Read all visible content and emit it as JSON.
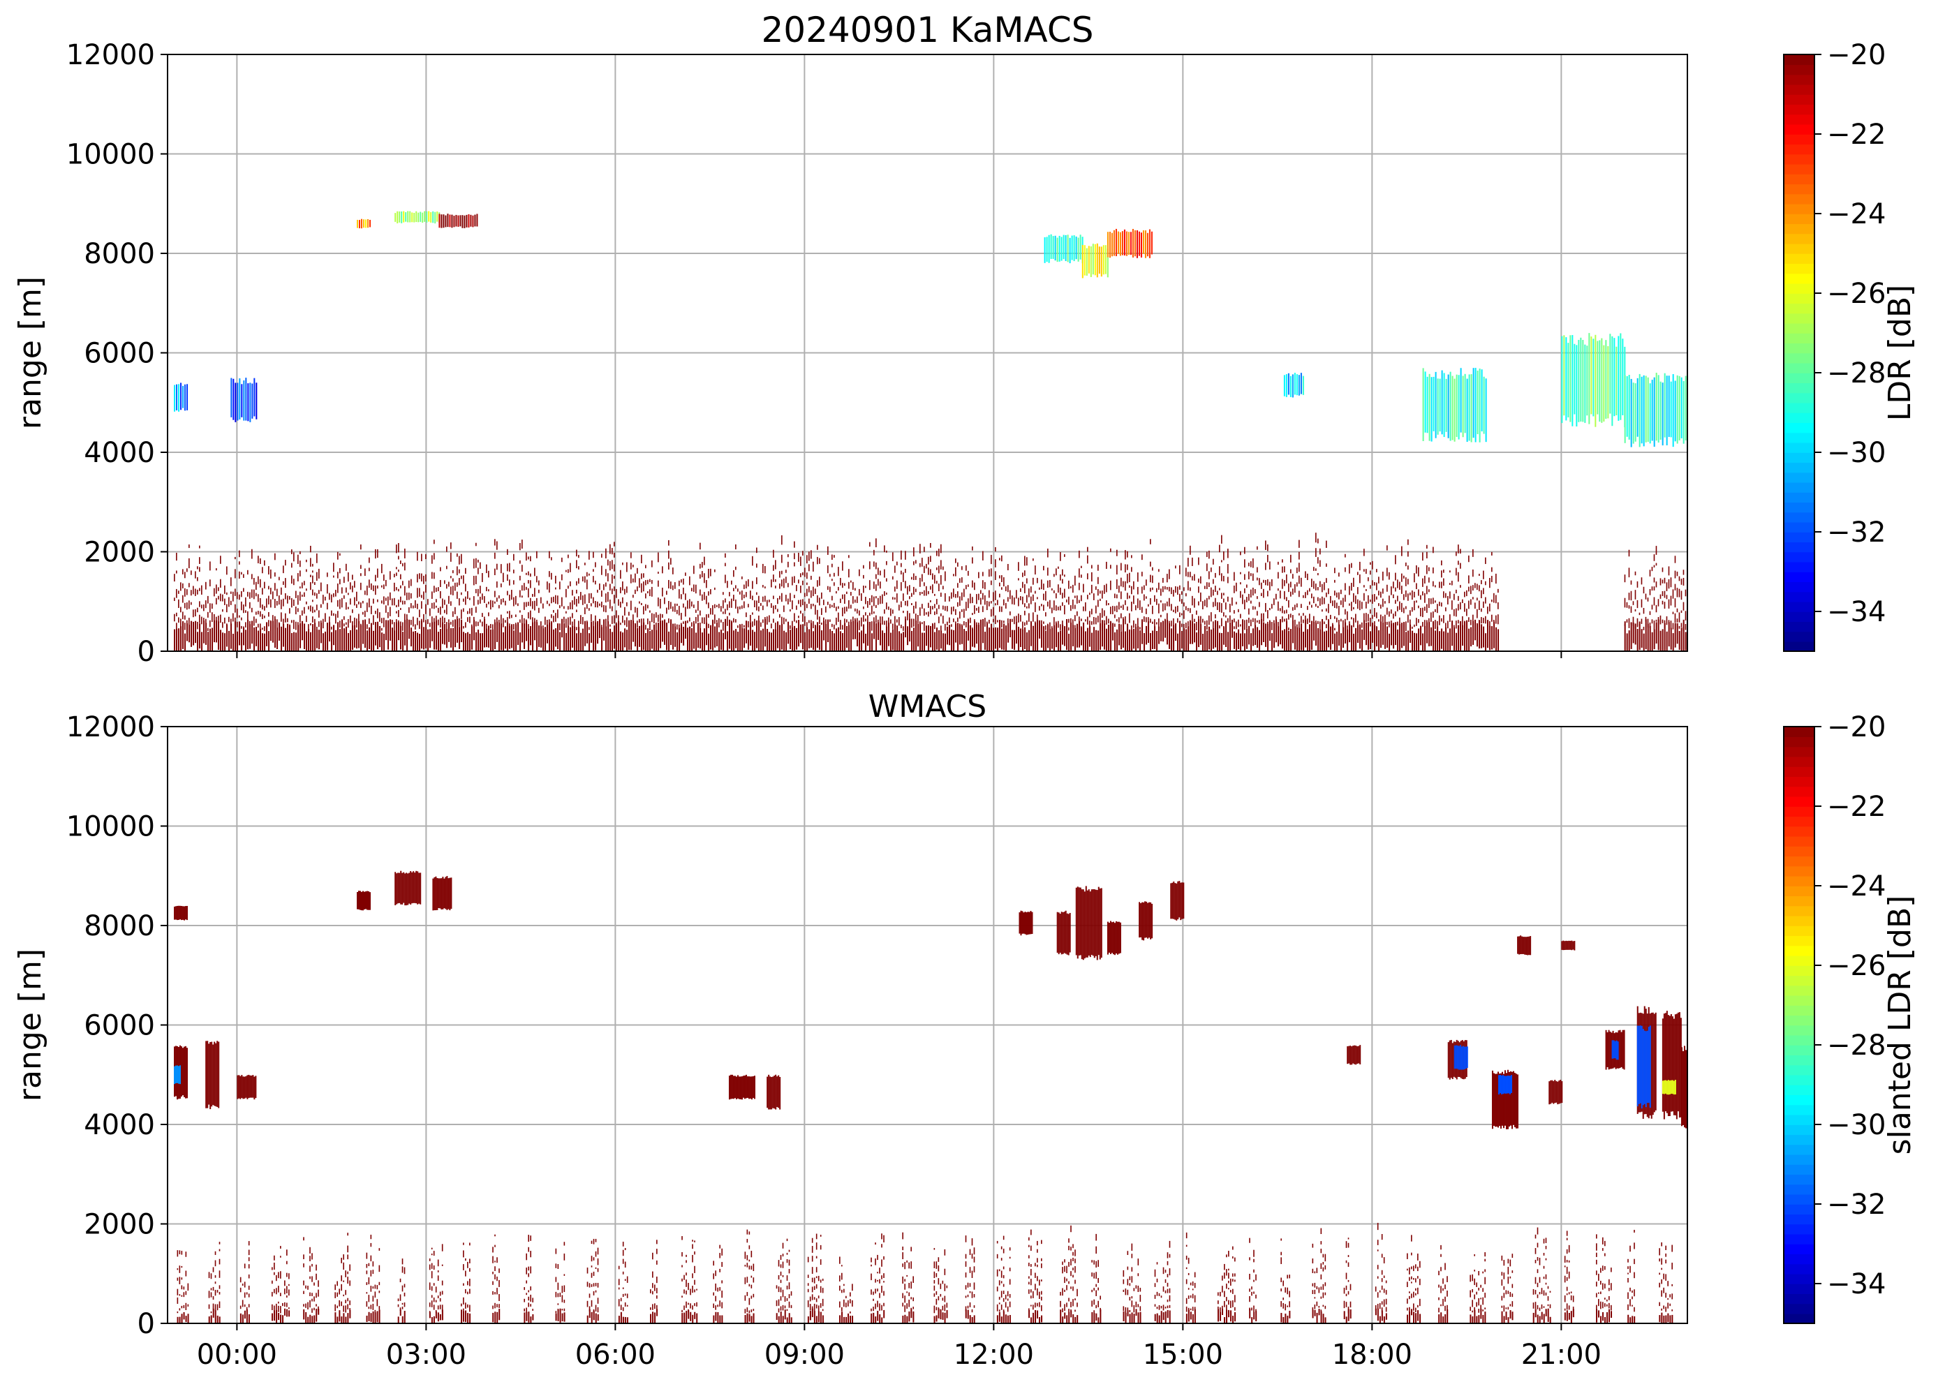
{
  "chart_data": [
    {
      "type": "heatmap",
      "title": "20240901 KaMACS",
      "ylabel": "range [m]",
      "xlabel": "",
      "ylim": [
        0,
        12000
      ],
      "xlim_hours": [
        -1.1,
        23.0
      ],
      "yticks": [
        "0",
        "2000",
        "4000",
        "6000",
        "8000",
        "10000",
        "12000"
      ],
      "yvalues": [
        0,
        2000,
        4000,
        6000,
        8000,
        10000,
        12000
      ],
      "xticks_hours": [
        0,
        3,
        6,
        9,
        12,
        15,
        18,
        21
      ],
      "xtick_labels": [],
      "grid": true,
      "colorbar": {
        "label": "LDR [dB]",
        "range": [
          -35,
          -20
        ],
        "ticks": [
          "−20",
          "−22",
          "−24",
          "−26",
          "−28",
          "−30",
          "−32",
          "−34"
        ],
        "tick_values": [
          -20,
          -22,
          -24,
          -26,
          -28,
          -30,
          -32,
          -34
        ],
        "colormap": "jet"
      },
      "regions": [
        {
          "t0": -1.0,
          "t1": 20.0,
          "r0": 0,
          "r1": 2200,
          "ldr": -20,
          "pattern": "clutter-dense"
        },
        {
          "t0": 22.0,
          "t1": 23.0,
          "r0": 0,
          "r1": 2000,
          "ldr": -20,
          "pattern": "clutter-dense"
        },
        {
          "t0": -1.0,
          "t1": -0.8,
          "r0": 4800,
          "r1": 5400,
          "ldr": -31,
          "pattern": "cloud"
        },
        {
          "t0": -0.1,
          "t1": 0.3,
          "r0": 4600,
          "r1": 5500,
          "ldr": -32,
          "pattern": "cloud"
        },
        {
          "t0": 1.9,
          "t1": 2.1,
          "r0": 8500,
          "r1": 8700,
          "ldr": -24,
          "pattern": "cloud"
        },
        {
          "t0": 2.5,
          "t1": 3.2,
          "r0": 8600,
          "r1": 8850,
          "ldr": -27,
          "pattern": "cloud"
        },
        {
          "t0": 3.2,
          "t1": 3.8,
          "r0": 8500,
          "r1": 8800,
          "ldr": -20,
          "pattern": "cloud"
        },
        {
          "t0": 12.8,
          "t1": 13.4,
          "r0": 7800,
          "r1": 8400,
          "ldr": -29,
          "pattern": "cloud"
        },
        {
          "t0": 13.4,
          "t1": 13.8,
          "r0": 7500,
          "r1": 8200,
          "ldr": -26,
          "pattern": "cloud"
        },
        {
          "t0": 13.8,
          "t1": 14.5,
          "r0": 7900,
          "r1": 8500,
          "ldr": -23,
          "pattern": "cloud"
        },
        {
          "t0": 16.6,
          "t1": 16.9,
          "r0": 5100,
          "r1": 5600,
          "ldr": -30,
          "pattern": "cloud"
        },
        {
          "t0": 18.8,
          "t1": 19.8,
          "r0": 4200,
          "r1": 5700,
          "ldr": -29,
          "pattern": "cloud"
        },
        {
          "t0": 21.0,
          "t1": 22.0,
          "r0": 4500,
          "r1": 6400,
          "ldr": -28,
          "pattern": "cloud"
        },
        {
          "t0": 22.0,
          "t1": 23.0,
          "r0": 4100,
          "r1": 5600,
          "ldr": -29,
          "pattern": "cloud"
        }
      ]
    },
    {
      "type": "heatmap",
      "title": "WMACS",
      "ylabel": "range [m]",
      "xlabel": "",
      "ylim": [
        0,
        12000
      ],
      "xlim_hours": [
        -1.1,
        23.0
      ],
      "yticks": [
        "0",
        "2000",
        "4000",
        "6000",
        "8000",
        "10000",
        "12000"
      ],
      "yvalues": [
        0,
        2000,
        4000,
        6000,
        8000,
        10000,
        12000
      ],
      "xticks_hours": [
        0,
        3,
        6,
        9,
        12,
        15,
        18,
        21
      ],
      "xtick_labels": [
        "00:00",
        "03:00",
        "06:00",
        "09:00",
        "12:00",
        "15:00",
        "18:00",
        "21:00"
      ],
      "grid": true,
      "colorbar": {
        "label": "slanted LDR [dB]",
        "range": [
          -35,
          -20
        ],
        "ticks": [
          "−20",
          "−22",
          "−24",
          "−26",
          "−28",
          "−30",
          "−32",
          "−34"
        ],
        "tick_values": [
          -20,
          -22,
          -24,
          -26,
          -28,
          -30,
          -32,
          -34
        ],
        "colormap": "jet"
      },
      "regions": [
        {
          "t0": -1.0,
          "t1": 23.0,
          "r0": 0,
          "r1": 1900,
          "ldr": -20,
          "pattern": "clutter-bursts"
        },
        {
          "t0": -1.0,
          "t1": -0.8,
          "r0": 8100,
          "r1": 8400,
          "ldr": -20,
          "pattern": "block"
        },
        {
          "t0": -1.0,
          "t1": -0.8,
          "r0": 4500,
          "r1": 5600,
          "ldr": -20,
          "pattern": "block"
        },
        {
          "t0": -0.5,
          "t1": -0.3,
          "r0": 4300,
          "r1": 5700,
          "ldr": -20,
          "pattern": "block"
        },
        {
          "t0": 0.0,
          "t1": 0.3,
          "r0": 4500,
          "r1": 5000,
          "ldr": -20,
          "pattern": "block"
        },
        {
          "t0": 1.9,
          "t1": 2.1,
          "r0": 8300,
          "r1": 8700,
          "ldr": -20,
          "pattern": "block"
        },
        {
          "t0": 2.5,
          "t1": 2.9,
          "r0": 8400,
          "r1": 9100,
          "ldr": -20,
          "pattern": "block"
        },
        {
          "t0": 3.1,
          "t1": 3.4,
          "r0": 8300,
          "r1": 9000,
          "ldr": -20,
          "pattern": "block"
        },
        {
          "t0": 7.8,
          "t1": 8.2,
          "r0": 4500,
          "r1": 5000,
          "ldr": -20,
          "pattern": "block"
        },
        {
          "t0": 8.4,
          "t1": 8.6,
          "r0": 4300,
          "r1": 5000,
          "ldr": -20,
          "pattern": "block"
        },
        {
          "t0": 12.4,
          "t1": 12.6,
          "r0": 7800,
          "r1": 8300,
          "ldr": -20,
          "pattern": "block"
        },
        {
          "t0": 13.0,
          "t1": 13.2,
          "r0": 7400,
          "r1": 8300,
          "ldr": -20,
          "pattern": "block"
        },
        {
          "t0": 13.3,
          "t1": 13.7,
          "r0": 7300,
          "r1": 8800,
          "ldr": -20,
          "pattern": "block"
        },
        {
          "t0": 13.8,
          "t1": 14.0,
          "r0": 7400,
          "r1": 8100,
          "ldr": -20,
          "pattern": "block"
        },
        {
          "t0": 14.3,
          "t1": 14.5,
          "r0": 7700,
          "r1": 8500,
          "ldr": -20,
          "pattern": "block"
        },
        {
          "t0": 14.8,
          "t1": 15.0,
          "r0": 8100,
          "r1": 8900,
          "ldr": -20,
          "pattern": "block"
        },
        {
          "t0": 17.6,
          "t1": 17.8,
          "r0": 5200,
          "r1": 5600,
          "ldr": -20,
          "pattern": "block"
        },
        {
          "t0": 19.2,
          "t1": 19.5,
          "r0": 4900,
          "r1": 5700,
          "ldr": -20,
          "pattern": "block"
        },
        {
          "t0": 19.9,
          "t1": 20.3,
          "r0": 3900,
          "r1": 5100,
          "ldr": -20,
          "pattern": "block"
        },
        {
          "t0": 20.8,
          "t1": 21.0,
          "r0": 4400,
          "r1": 4900,
          "ldr": -20,
          "pattern": "block"
        },
        {
          "t0": 20.3,
          "t1": 20.5,
          "r0": 7400,
          "r1": 7800,
          "ldr": -20,
          "pattern": "block"
        },
        {
          "t0": 21.0,
          "t1": 21.2,
          "r0": 7500,
          "r1": 7700,
          "ldr": -20,
          "pattern": "block"
        },
        {
          "t0": 21.7,
          "t1": 22.0,
          "r0": 5100,
          "r1": 5900,
          "ldr": -20,
          "pattern": "block"
        },
        {
          "t0": 22.2,
          "t1": 22.5,
          "r0": 4100,
          "r1": 6400,
          "ldr": -20,
          "pattern": "block"
        },
        {
          "t0": 22.6,
          "t1": 22.9,
          "r0": 4100,
          "r1": 6300,
          "ldr": -20,
          "pattern": "block"
        },
        {
          "t0": 22.9,
          "t1": 23.0,
          "r0": 3900,
          "r1": 5600,
          "ldr": -20,
          "pattern": "block"
        },
        {
          "t0": 19.3,
          "t1": 19.5,
          "r0": 5100,
          "r1": 5600,
          "ldr": -32,
          "pattern": "embedded"
        },
        {
          "t0": 20.0,
          "t1": 20.2,
          "r0": 4600,
          "r1": 5000,
          "ldr": -32,
          "pattern": "embedded"
        },
        {
          "t0": 21.8,
          "t1": 21.9,
          "r0": 5300,
          "r1": 5700,
          "ldr": -32,
          "pattern": "embedded"
        },
        {
          "t0": 22.2,
          "t1": 22.4,
          "r0": 4300,
          "r1": 6000,
          "ldr": -32,
          "pattern": "embedded"
        },
        {
          "t0": 22.6,
          "t1": 22.8,
          "r0": 4600,
          "r1": 4900,
          "ldr": -26,
          "pattern": "embedded"
        },
        {
          "t0": -1.0,
          "t1": -0.9,
          "r0": 4800,
          "r1": 5200,
          "ldr": -31,
          "pattern": "embedded"
        }
      ]
    }
  ]
}
